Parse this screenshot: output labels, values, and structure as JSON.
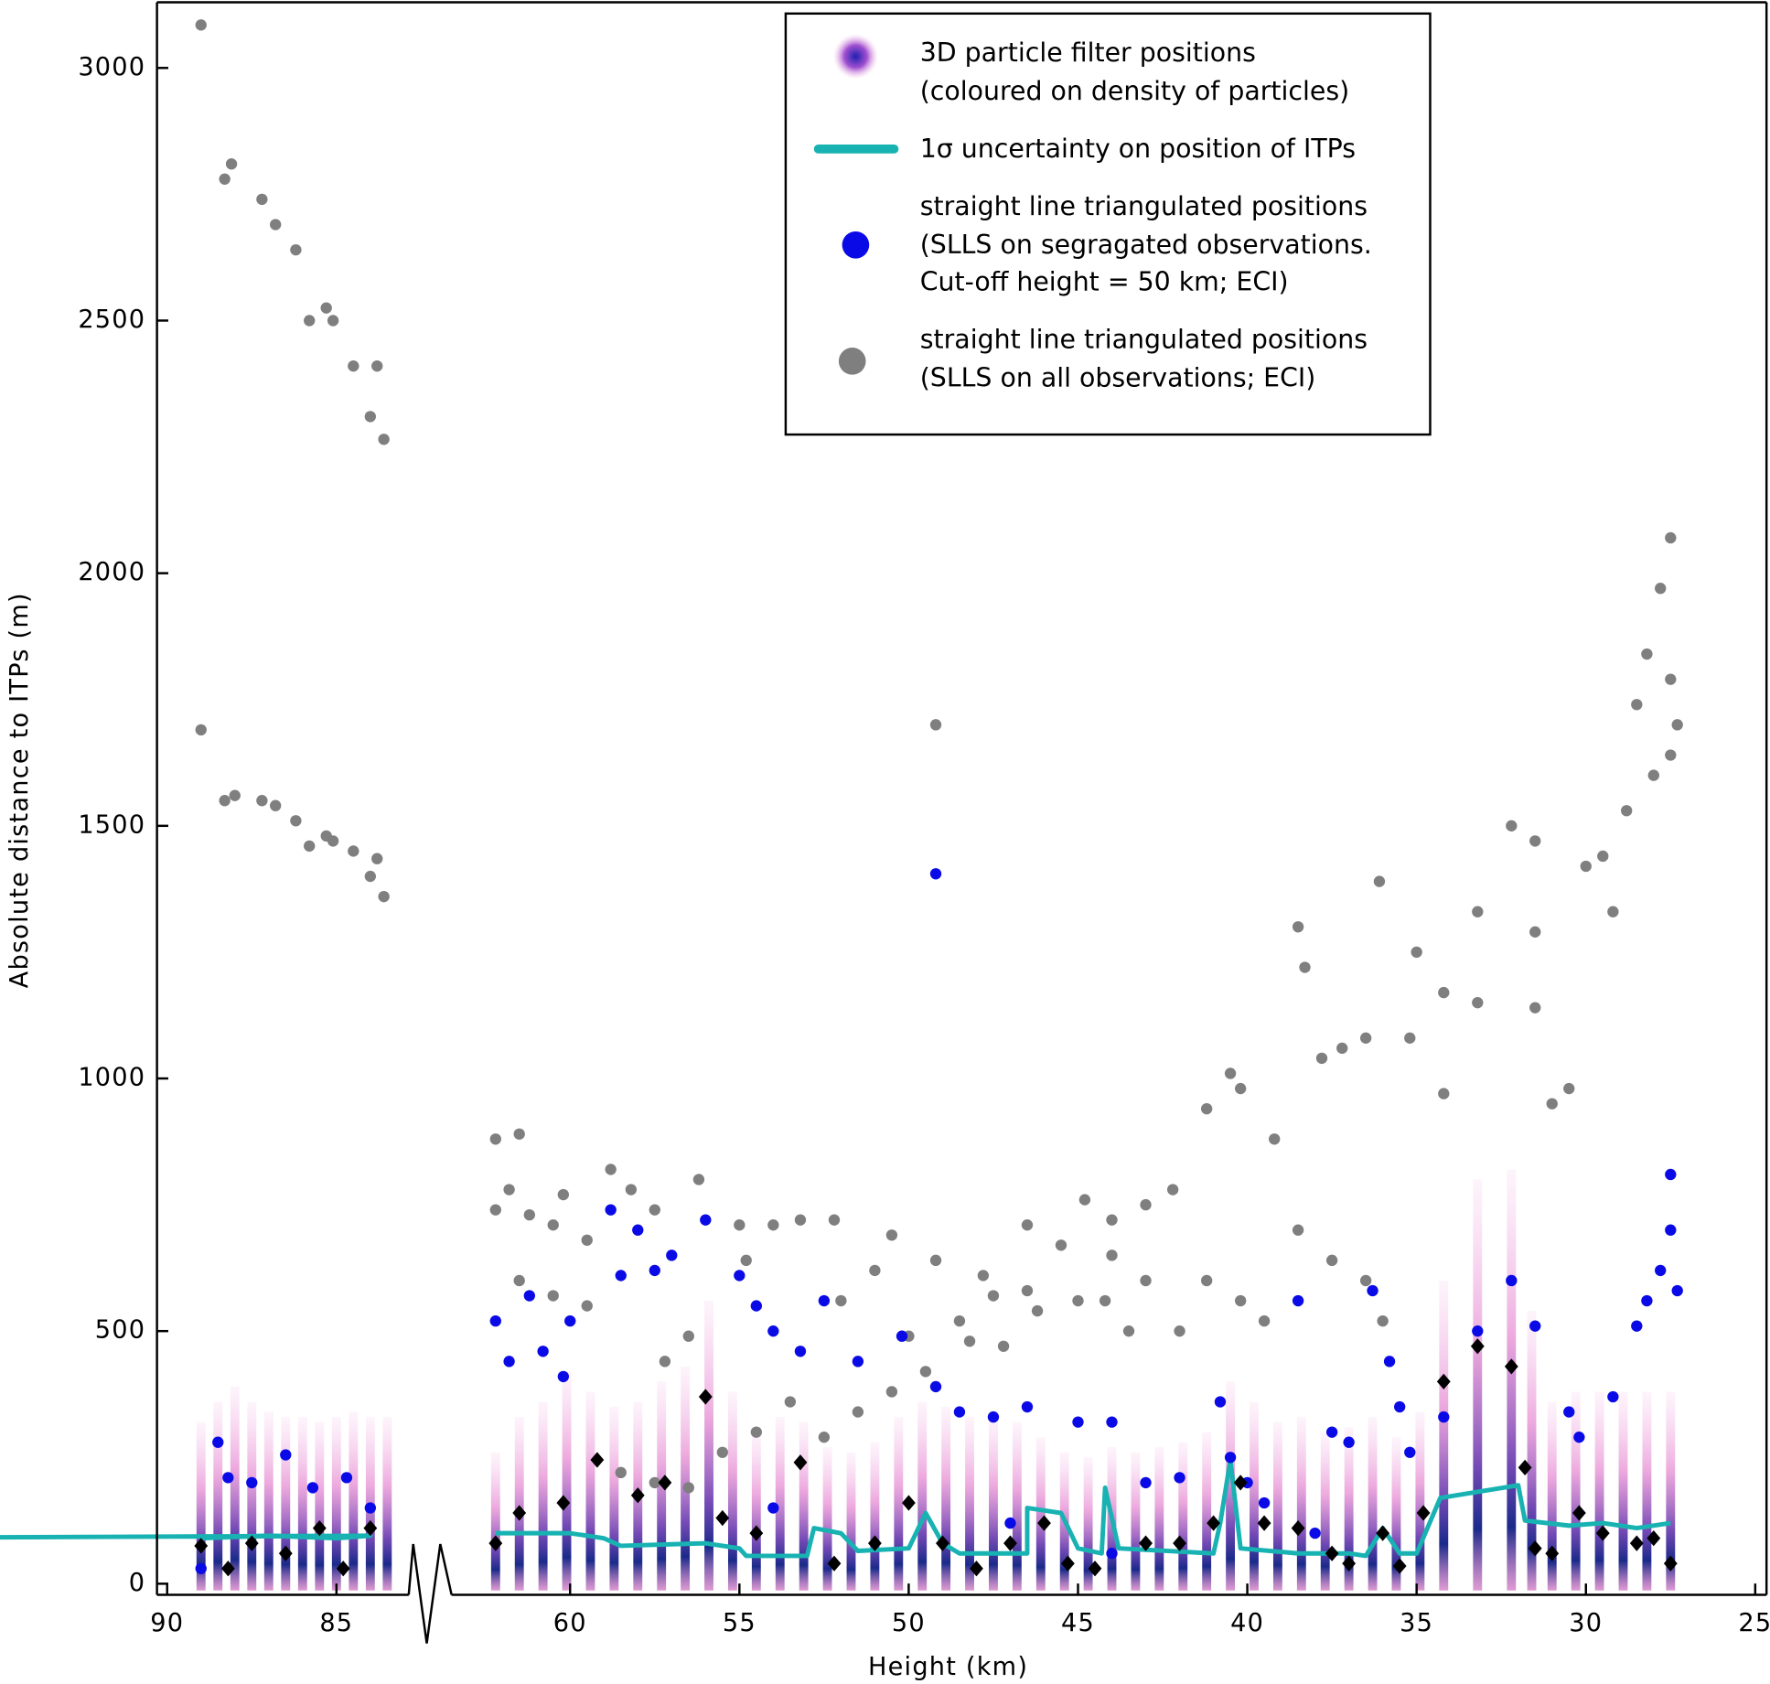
{
  "chart_data": {
    "type": "scatter",
    "x_label": "Height (km)",
    "y_label": "Absolute distance to ITPs (m)",
    "xlim": [
      90.3,
      25
    ],
    "x_break": [
      83.5,
      62.5
    ],
    "ylim": [
      -22,
      3130
    ],
    "xticks": [
      90,
      85,
      60,
      55,
      50,
      45,
      40,
      35,
      30,
      25
    ],
    "yticks": [
      0,
      500,
      1000,
      1500,
      2000,
      2500,
      3000
    ],
    "series": [
      {
        "name": [
          "3D particle filter positions",
          "(coloured on density of particles)"
        ],
        "kind": "particles",
        "color": "#c03cc0",
        "x": [
          89,
          88.5,
          88,
          87.5,
          87,
          86.5,
          86,
          85.5,
          85,
          84.5,
          84,
          83.5,
          62.2,
          61.5,
          60.8,
          60.1,
          59.4,
          58.7,
          58,
          57.3,
          56.6,
          55.9,
          55.2,
          54.5,
          53.8,
          53.1,
          52.4,
          51.7,
          51,
          50.3,
          49.6,
          48.9,
          48.2,
          47.5,
          46.8,
          46.1,
          45.4,
          44.7,
          44,
          43.3,
          42.6,
          41.9,
          41.2,
          40.5,
          39.8,
          39.1,
          38.4,
          37.7,
          37,
          36.3,
          35.6,
          34.9,
          34.2,
          33.2,
          32.2,
          31.6,
          31,
          30.3,
          29.6,
          28.9,
          28.2,
          27.5
        ],
        "values": [
          320,
          360,
          390,
          360,
          340,
          330,
          330,
          320,
          330,
          340,
          330,
          330,
          260,
          330,
          360,
          420,
          380,
          350,
          360,
          400,
          430,
          560,
          380,
          300,
          330,
          320,
          270,
          260,
          280,
          330,
          360,
          350,
          330,
          330,
          320,
          290,
          260,
          250,
          270,
          260,
          270,
          280,
          300,
          400,
          360,
          320,
          330,
          300,
          310,
          330,
          290,
          340,
          600,
          800,
          820,
          540,
          360,
          380,
          380,
          380,
          380,
          380
        ]
      },
      {
        "name": [
          "1σ uncertainty on position of ITPs"
        ],
        "kind": "line",
        "color": "#18b2b2",
        "x": [
          89,
          87,
          85,
          84,
          83.3,
          null,
          62.2,
          60,
          59,
          58.5,
          56,
          55,
          54.8,
          53,
          52.8,
          52,
          51.5,
          50,
          49.5,
          49,
          48.5,
          46.5,
          46.5,
          45.5,
          45,
          44.3,
          44.2,
          43.8,
          41,
          40.8,
          40.5,
          40.2,
          38.5,
          37,
          36.5,
          36,
          35.5,
          35,
          34.3,
          32,
          31.8,
          30.5,
          29.5,
          28.5,
          27.5
        ],
        "values": [
          90,
          95,
          90,
          95,
          90,
          null,
          100,
          100,
          90,
          75,
          80,
          70,
          55,
          55,
          110,
          100,
          65,
          70,
          140,
          80,
          60,
          60,
          150,
          140,
          70,
          60,
          190,
          70,
          60,
          120,
          245,
          70,
          60,
          60,
          55,
          110,
          60,
          60,
          170,
          195,
          125,
          115,
          120,
          110,
          120
        ]
      },
      {
        "name": [
          "straight line triangulated positions",
          "(SLLS on segragated observations.",
          "Cut-off height = 50 km; ECI)"
        ],
        "kind": "dot",
        "color": "#0a0ae6",
        "x": [
          89,
          88.5,
          88.2,
          87.5,
          86.5,
          85.7,
          84.7,
          84,
          62.2,
          61.8,
          61.2,
          60.8,
          60.2,
          60,
          58.8,
          58.5,
          58,
          57.5,
          57,
          56,
          55,
          54.5,
          54,
          53.2,
          52.5,
          51.5,
          50.2,
          49.2,
          49.2,
          48.5,
          47.5,
          46.5,
          45,
          44,
          43,
          42,
          40.8,
          40.5,
          40,
          39.5,
          38.5,
          37.5,
          37,
          36.3,
          35.8,
          35.5,
          35.2,
          34.2,
          33.2,
          32.2,
          31.5,
          30.5,
          30.2,
          29.2,
          28.5,
          28.2,
          27.8,
          27.5,
          27.5,
          27.3,
          54,
          47,
          44,
          38
        ],
        "values": [
          30,
          280,
          210,
          200,
          255,
          190,
          210,
          150,
          520,
          440,
          570,
          460,
          410,
          520,
          740,
          610,
          700,
          620,
          650,
          720,
          610,
          550,
          500,
          460,
          560,
          440,
          490,
          1405,
          390,
          340,
          330,
          350,
          320,
          320,
          200,
          210,
          360,
          250,
          200,
          160,
          560,
          300,
          280,
          580,
          440,
          350,
          260,
          330,
          500,
          600,
          510,
          340,
          290,
          370,
          510,
          560,
          620,
          810,
          700,
          580,
          150,
          120,
          60,
          100
        ]
      },
      {
        "name": [
          "straight line triangulated positions",
          "(SLLS on all observations; ECI)"
        ],
        "kind": "dot",
        "color": "#7f7f7f",
        "x": [
          89,
          89,
          88.3,
          88.1,
          87.2,
          86.8,
          86.2,
          85.8,
          85.3,
          85.1,
          84.5,
          83.8,
          84,
          83.6,
          83.3,
          88.3,
          88,
          87.2,
          86.8,
          86.2,
          85.8,
          85.3,
          85.1,
          84.5,
          84,
          83.8,
          83.6,
          83.3,
          62.2,
          61.5,
          62.2,
          61.8,
          61.2,
          60.5,
          60.2,
          59.5,
          58.8,
          58.2,
          57.5,
          56.2,
          55,
          54,
          53.2,
          52.2,
          50.5,
          49.2,
          47.8,
          46.5,
          45.5,
          44.8,
          44,
          43,
          42.2,
          41.2,
          40.5,
          40.2,
          39.2,
          38.5,
          38.3,
          37.8,
          37.2,
          36.5,
          36.1,
          35.2,
          35,
          34.2,
          34.2,
          33.2,
          33.2,
          32.2,
          31.5,
          31.5,
          31.5,
          31,
          30.5,
          30,
          29.5,
          29.2,
          28.8,
          28.5,
          28.2,
          27.8,
          27.5,
          27.5,
          27.3,
          27.5,
          28,
          49.2,
          48.5,
          47.2,
          46.2,
          45,
          43.5,
          42,
          41.2,
          40.2,
          39.5,
          38.5,
          37.5,
          36.5,
          36,
          58.5,
          57.5,
          56.5,
          55.5,
          54.5,
          53.5,
          52.5,
          51.5,
          50.5,
          49.5,
          48.2,
          52,
          51,
          50,
          47.5,
          46.5,
          44.2,
          44,
          43,
          57.2,
          56.5,
          60.5,
          59.5,
          61.5,
          54.8
        ],
        "values": [
          3085,
          1690,
          2780,
          2810,
          2740,
          2690,
          2640,
          2500,
          2525,
          2500,
          2410,
          2410,
          2310,
          2265,
          2265,
          1550,
          1560,
          1550,
          1540,
          1510,
          1460,
          1480,
          1470,
          1450,
          1400,
          1435,
          1360,
          1380,
          880,
          890,
          740,
          780,
          730,
          710,
          770,
          680,
          820,
          780,
          740,
          800,
          710,
          710,
          720,
          720,
          690,
          640,
          610,
          710,
          670,
          760,
          720,
          750,
          780,
          940,
          1010,
          980,
          880,
          1300,
          1220,
          1040,
          1060,
          1080,
          1390,
          1080,
          1250,
          1170,
          970,
          1330,
          1150,
          1500,
          1470,
          1290,
          1140,
          950,
          980,
          1420,
          1440,
          1330,
          1530,
          1740,
          1840,
          1970,
          2070,
          1790,
          1700,
          1640,
          1600,
          1700,
          520,
          470,
          540,
          560,
          500,
          500,
          600,
          560,
          520,
          700,
          640,
          600,
          520,
          220,
          200,
          190,
          260,
          300,
          360,
          290,
          340,
          380,
          420,
          480,
          560,
          620,
          490,
          570,
          580,
          560,
          650,
          600,
          440,
          490,
          570,
          550,
          600,
          640
        ]
      },
      {
        "kind": "diamond",
        "color": "#000000",
        "x": [
          89,
          88.2,
          87.5,
          86.5,
          85.5,
          84.8,
          84,
          83.3,
          62.2,
          61.5,
          60.2,
          59.2,
          58,
          57.2,
          56,
          55.5,
          54.5,
          53.2,
          52.2,
          51,
          50,
          49,
          48,
          47,
          46,
          45.3,
          44.5,
          43,
          42,
          41,
          40.2,
          39.5,
          38.5,
          37.5,
          37,
          36,
          35.5,
          34.8,
          34.2,
          33.2,
          32.2,
          31.8,
          31.5,
          31,
          30.2,
          29.5,
          28.5,
          28,
          27.5
        ],
        "values": [
          75,
          30,
          80,
          60,
          110,
          30,
          110,
          90,
          80,
          140,
          160,
          245,
          175,
          200,
          370,
          130,
          100,
          240,
          40,
          80,
          160,
          80,
          30,
          80,
          120,
          40,
          30,
          80,
          80,
          120,
          200,
          120,
          110,
          60,
          40,
          100,
          35,
          140,
          400,
          470,
          430,
          230,
          70,
          60,
          140,
          100,
          80,
          90,
          40
        ]
      }
    ]
  }
}
